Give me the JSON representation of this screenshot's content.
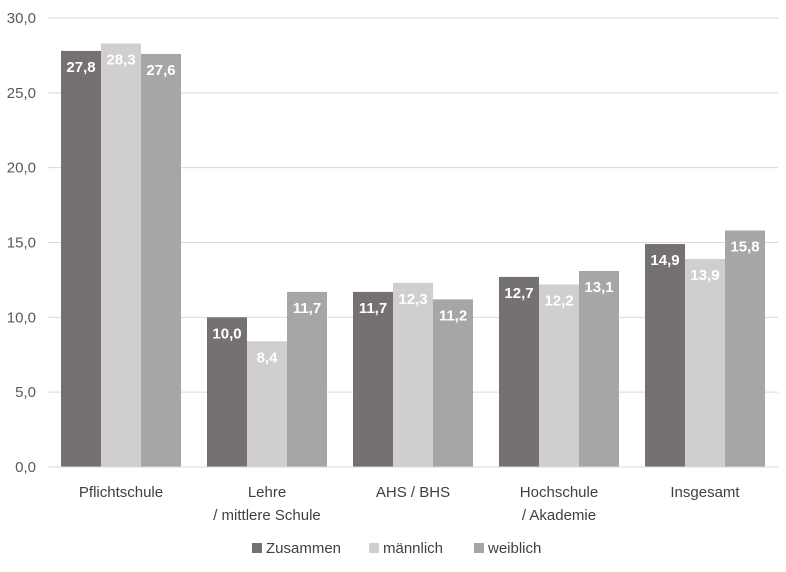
{
  "chart_data": {
    "type": "bar",
    "categories": [
      [
        "Pflichtschule"
      ],
      [
        "Lehre",
        "/ mittlere Schule"
      ],
      [
        "AHS / BHS"
      ],
      [
        "Hochschule",
        "/ Akademie"
      ],
      [
        "Insgesamt"
      ]
    ],
    "series": [
      {
        "name": "Zusammen",
        "color": "#767171",
        "values": [
          27.8,
          10.0,
          11.7,
          12.7,
          14.9
        ],
        "labels": [
          "27,8",
          "10,0",
          "11,7",
          "12,7",
          "14,9"
        ]
      },
      {
        "name": "männlich",
        "color": "#D0CECE",
        "values": [
          28.3,
          8.4,
          12.3,
          12.2,
          13.9
        ],
        "labels": [
          "28,3",
          "8,4",
          "12,3",
          "12,2",
          "13,9"
        ]
      },
      {
        "name": "weiblich",
        "color": "#A6A6A6",
        "values": [
          27.6,
          11.7,
          11.2,
          13.1,
          15.8
        ],
        "labels": [
          "27,6",
          "11,7",
          "11,2",
          "13,1",
          "15,8"
        ]
      }
    ],
    "yticks": [
      0,
      5,
      10,
      15,
      20,
      25,
      30
    ],
    "ytick_labels": [
      "0,0",
      "5,0",
      "10,0",
      "15,0",
      "20,0",
      "25,0",
      "30,0"
    ],
    "ylim": [
      0,
      30
    ],
    "grid": true,
    "legend_position": "bottom"
  }
}
